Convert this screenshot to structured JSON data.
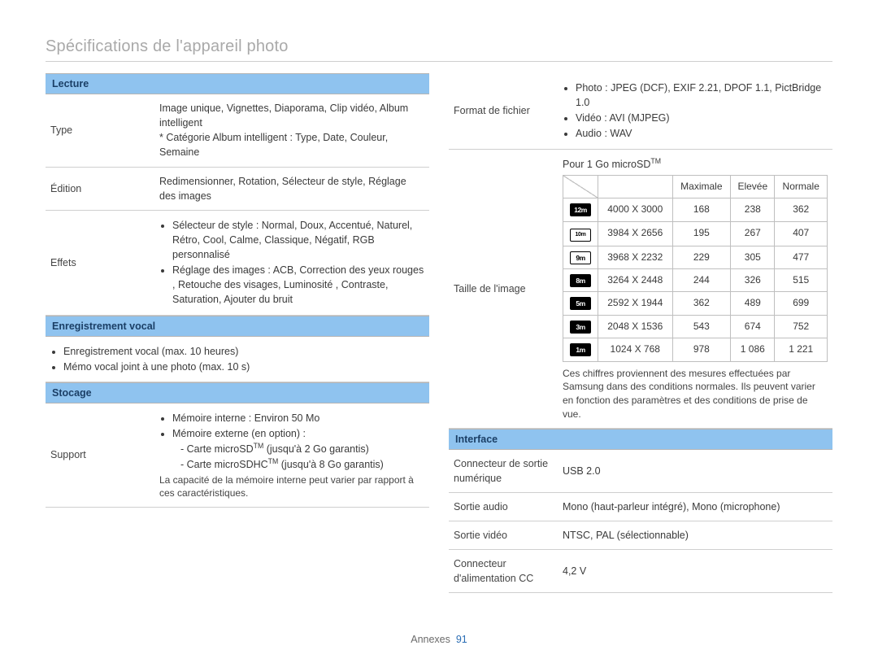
{
  "page": {
    "title": "Spécifications de l'appareil photo",
    "footer_label": "Annexes",
    "page_number": "91"
  },
  "left": {
    "lecture": {
      "header": "Lecture",
      "rows": [
        {
          "k": "Type",
          "v": "Image unique, Vignettes, Diaporama, Clip vidéo, Album intelligent\n* Catégorie Album intelligent : Type, Date, Couleur, Semaine"
        },
        {
          "k": "Édition",
          "v": "Redimensionner, Rotation, Sélecteur de style, Réglage des images"
        }
      ],
      "effets": {
        "k": "Effets",
        "bullets": [
          "Sélecteur de style : Normal, Doux, Accentué, Naturel, Rétro, Cool, Calme, Classique, Négatif, RGB personnalisé",
          "Réglage des images : ACB, Correction des yeux rouges , Retouche des visages, Luminosité , Contraste, Saturation, Ajouter du bruit"
        ]
      }
    },
    "enreg": {
      "header": "Enregistrement vocal",
      "bullets": [
        "Enregistrement vocal (max. 10 heures)",
        "Mémo vocal joint à une photo (max. 10 s)"
      ]
    },
    "stockage": {
      "header": "Stocage",
      "support": {
        "k": "Support",
        "bullets": [
          "Mémoire interne : Environ 50 Mo",
          "Mémoire externe (en option) :"
        ],
        "sub": [
          "Carte microSDTM (jusqu'à 2 Go garantis)",
          "Carte microSDHCTM (jusqu'à 8 Go garantis)"
        ],
        "note": "La capacité de la mémoire interne peut varier par rapport à ces caractéristiques."
      }
    }
  },
  "right": {
    "format": {
      "k": "Format de fichier",
      "bullets": [
        "Photo : JPEG (DCF), EXIF 2.21, DPOF 1.1, PictBridge 1.0",
        "Vidéo : AVI (MJPEG)",
        "Audio : WAV"
      ]
    },
    "taille": {
      "k": "Taille de l'image",
      "subhead": "Pour 1 Go microSDTM",
      "cols": [
        "Maximale",
        "Elevée",
        "Normale"
      ],
      "rows": [
        {
          "ico": "12m",
          "inv": true,
          "res": "4000 X 3000",
          "v": [
            "168",
            "238",
            "362"
          ]
        },
        {
          "ico": "10m",
          "wide": true,
          "res": "3984 X 2656",
          "v": [
            "195",
            "267",
            "407"
          ]
        },
        {
          "ico": "9m",
          "res": "3968 X 2232",
          "v": [
            "229",
            "305",
            "477"
          ]
        },
        {
          "ico": "8m",
          "inv": true,
          "res": "3264 X 2448",
          "v": [
            "244",
            "326",
            "515"
          ]
        },
        {
          "ico": "5m",
          "inv": true,
          "res": "2592 X 1944",
          "v": [
            "362",
            "489",
            "699"
          ]
        },
        {
          "ico": "3m",
          "inv": true,
          "res": "2048 X 1536",
          "v": [
            "543",
            "674",
            "752"
          ]
        },
        {
          "ico": "1m",
          "inv": true,
          "res": "1024 X 768",
          "v": [
            "978",
            "1 086",
            "1 221"
          ]
        }
      ],
      "note": "Ces chiffres proviennent des mesures effectuées par Samsung dans des conditions normales. Ils peuvent varier en fonction des paramètres et des conditions de prise de vue."
    },
    "interface": {
      "header": "Interface",
      "rows": [
        {
          "k": "Connecteur de sortie numérique",
          "v": "USB 2.0"
        },
        {
          "k": "Sortie audio",
          "v": "Mono (haut-parleur intégré), Mono (microphone)"
        },
        {
          "k": "Sortie vidéo",
          "v": "NTSC, PAL (sélectionnable)"
        },
        {
          "k": "Connecteur d'alimentation CC",
          "v": "4,2 V"
        }
      ]
    }
  }
}
